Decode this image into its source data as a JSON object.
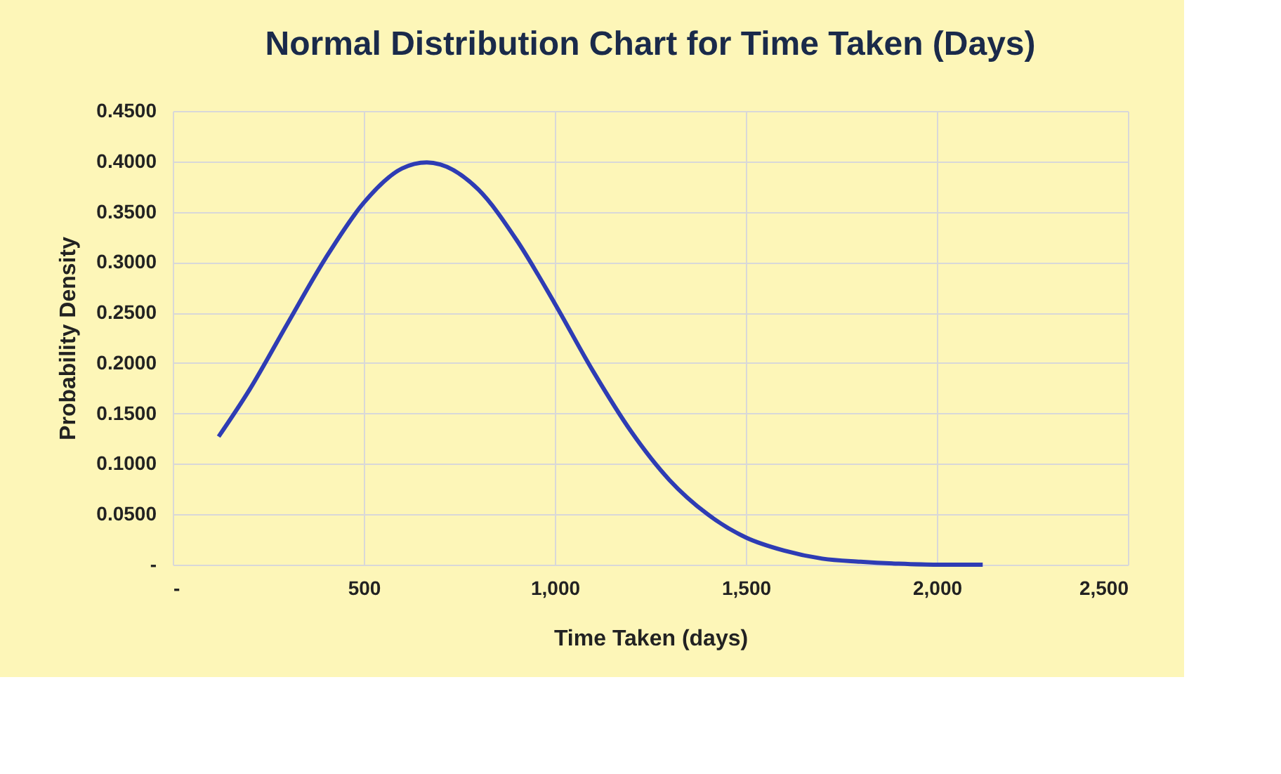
{
  "chart_data": {
    "type": "line",
    "title": "Normal Distribution Chart for Time Taken (Days)",
    "xlabel": "Time Taken (days)",
    "ylabel": "Probability Density",
    "x": [
      120,
      200,
      300,
      400,
      500,
      600,
      665,
      700,
      800,
      900,
      1000,
      1100,
      1200,
      1300,
      1400,
      1500,
      1600,
      1700,
      1800,
      1900,
      2000,
      2120
    ],
    "series": [
      {
        "color": "#2e3cb4",
        "values": [
          0.127,
          0.173,
          0.239,
          0.304,
          0.359,
          0.393,
          0.399,
          0.397,
          0.372,
          0.322,
          0.259,
          0.192,
          0.132,
          0.084,
          0.05,
          0.027,
          0.014,
          0.006,
          0.003,
          0.001,
          0.0,
          0.0
        ]
      }
    ],
    "xlim": [
      0,
      2500
    ],
    "xticks": [
      {
        "value": 0,
        "label": "-"
      },
      500,
      {
        "value": 1000,
        "label": "1,000"
      },
      {
        "value": 1500,
        "label": "1,500"
      },
      {
        "value": 2000,
        "label": "2,000"
      },
      {
        "value": 2500,
        "label": "2,500"
      }
    ],
    "ylim": [
      0,
      0.45
    ],
    "yticks": [
      {
        "value": 0,
        "label": "-"
      },
      {
        "value": 0.05,
        "label": "0.0500"
      },
      {
        "value": 0.1,
        "label": "0.1000"
      },
      {
        "value": 0.15,
        "label": "0.1500"
      },
      {
        "value": 0.2,
        "label": "0.2000"
      },
      {
        "value": 0.25,
        "label": "0.2500"
      },
      {
        "value": 0.3,
        "label": "0.3000"
      },
      {
        "value": 0.35,
        "label": "0.3500"
      },
      {
        "value": 0.4,
        "label": "0.4000"
      },
      {
        "value": 0.45,
        "label": "0.4500"
      }
    ],
    "grid": true,
    "marker": "none",
    "line_style": "solid"
  }
}
